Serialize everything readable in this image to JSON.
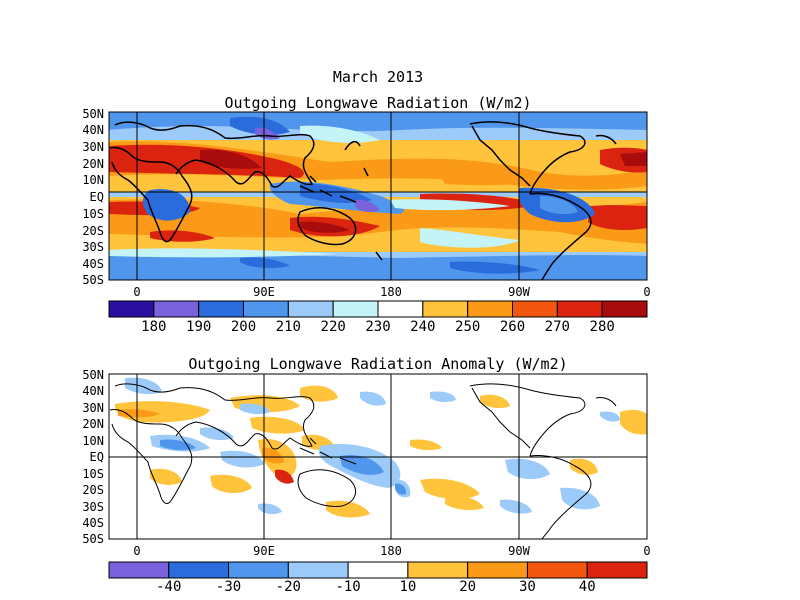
{
  "figure": {
    "title": "March 2013"
  },
  "maps": [
    {
      "title": "Outgoing Longwave Radiation (W/m2)",
      "lat_labels": [
        "50N",
        "40N",
        "30N",
        "20N",
        "10N",
        "EQ",
        "10S",
        "20S",
        "30S",
        "40S",
        "50S"
      ],
      "lon_labels": [
        "0",
        "90E",
        "180",
        "90W",
        "0"
      ],
      "colorbar": {
        "labels": [
          "180",
          "190",
          "200",
          "210",
          "220",
          "230",
          "240",
          "250",
          "260",
          "270",
          "280"
        ],
        "colors": [
          "#2a0fa0",
          "#7a62dc",
          "#2a6cdc",
          "#4f96ec",
          "#9ccbf9",
          "#c4f4f8",
          "#ffffff",
          "#ffc43c",
          "#fa9a16",
          "#f2560f",
          "#da2410",
          "#a80c0c"
        ]
      }
    },
    {
      "title": "Outgoing Longwave Radiation Anomaly (W/m2)",
      "lat_labels": [
        "50N",
        "40N",
        "30N",
        "20N",
        "10N",
        "EQ",
        "10S",
        "20S",
        "30S",
        "40S",
        "50S"
      ],
      "lon_labels": [
        "0",
        "90E",
        "180",
        "90W",
        "0"
      ],
      "colorbar": {
        "labels": [
          "-40",
          "-30",
          "-20",
          "-10",
          "10",
          "20",
          "30",
          "40"
        ],
        "colors": [
          "#7a62dc",
          "#2a6cdc",
          "#4f96ec",
          "#9ccbf9",
          "#ffffff",
          "#ffc43c",
          "#fa9a16",
          "#f2560f",
          "#da2410"
        ]
      }
    }
  ]
}
